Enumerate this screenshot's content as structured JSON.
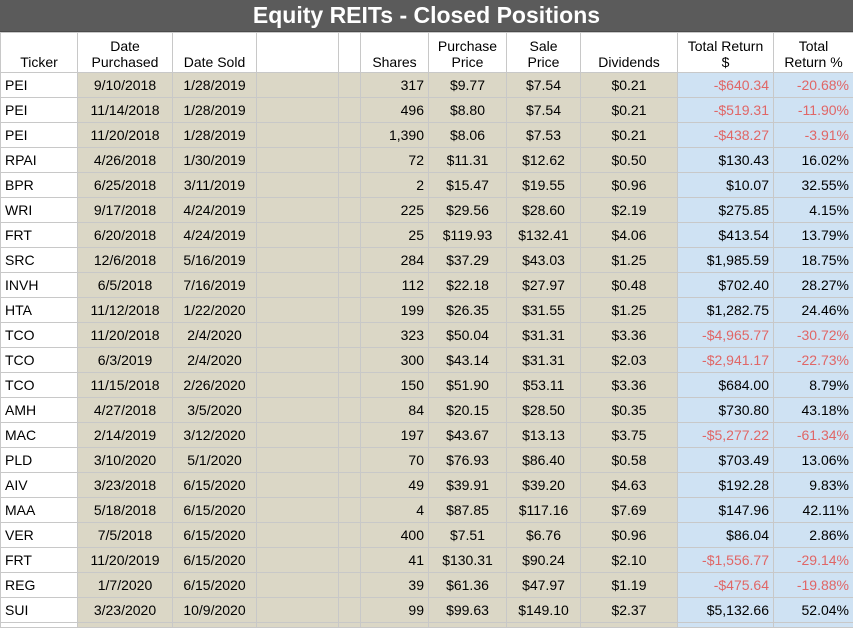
{
  "title": "Equity REITs - Closed Positions",
  "headers": {
    "ticker": "Ticker",
    "date_purchased": [
      "Date",
      "Purchased"
    ],
    "date_sold": "Date Sold",
    "blank1": "",
    "blank2": "",
    "shares": "Shares",
    "purchase_price": [
      "Purchase",
      "Price"
    ],
    "sale_price": [
      "Sale",
      "Price"
    ],
    "dividends": "Dividends",
    "total_return_dollar": [
      "Total Return",
      "$"
    ],
    "total_return_pct": [
      "Total",
      "Return %"
    ]
  },
  "rows": [
    {
      "ticker": "PEI",
      "purchased": "9/10/2018",
      "sold": "1/28/2019",
      "shares": "317",
      "purchase_price": "$9.77",
      "sale_price": "$7.54",
      "dividends": "$0.21",
      "total_return": "-$640.34",
      "total_pct": "-20.68%",
      "negative": true
    },
    {
      "ticker": "PEI",
      "purchased": "11/14/2018",
      "sold": "1/28/2019",
      "shares": "496",
      "purchase_price": "$8.80",
      "sale_price": "$7.54",
      "dividends": "$0.21",
      "total_return": "-$519.31",
      "total_pct": "-11.90%",
      "negative": true
    },
    {
      "ticker": "PEI",
      "purchased": "11/20/2018",
      "sold": "1/28/2019",
      "shares": "1,390",
      "purchase_price": "$8.06",
      "sale_price": "$7.53",
      "dividends": "$0.21",
      "total_return": "-$438.27",
      "total_pct": "-3.91%",
      "negative": true
    },
    {
      "ticker": "RPAI",
      "purchased": "4/26/2018",
      "sold": "1/30/2019",
      "shares": "72",
      "purchase_price": "$11.31",
      "sale_price": "$12.62",
      "dividends": "$0.50",
      "total_return": "$130.43",
      "total_pct": "16.02%",
      "negative": false
    },
    {
      "ticker": "BPR",
      "purchased": "6/25/2018",
      "sold": "3/11/2019",
      "shares": "2",
      "purchase_price": "$15.47",
      "sale_price": "$19.55",
      "dividends": "$0.96",
      "total_return": "$10.07",
      "total_pct": "32.55%",
      "negative": false
    },
    {
      "ticker": "WRI",
      "purchased": "9/17/2018",
      "sold": "4/24/2019",
      "shares": "225",
      "purchase_price": "$29.56",
      "sale_price": "$28.60",
      "dividends": "$2.19",
      "total_return": "$275.85",
      "total_pct": "4.15%",
      "negative": false
    },
    {
      "ticker": "FRT",
      "purchased": "6/20/2018",
      "sold": "4/24/2019",
      "shares": "25",
      "purchase_price": "$119.93",
      "sale_price": "$132.41",
      "dividends": "$4.06",
      "total_return": "$413.54",
      "total_pct": "13.79%",
      "negative": false
    },
    {
      "ticker": "SRC",
      "purchased": "12/6/2018",
      "sold": "5/16/2019",
      "shares": "284",
      "purchase_price": "$37.29",
      "sale_price": "$43.03",
      "dividends": "$1.25",
      "total_return": "$1,985.59",
      "total_pct": "18.75%",
      "negative": false
    },
    {
      "ticker": "INVH",
      "purchased": "6/5/2018",
      "sold": "7/16/2019",
      "shares": "112",
      "purchase_price": "$22.18",
      "sale_price": "$27.97",
      "dividends": "$0.48",
      "total_return": "$702.40",
      "total_pct": "28.27%",
      "negative": false
    },
    {
      "ticker": "HTA",
      "purchased": "11/12/2018",
      "sold": "1/22/2020",
      "shares": "199",
      "purchase_price": "$26.35",
      "sale_price": "$31.55",
      "dividends": "$1.25",
      "total_return": "$1,282.75",
      "total_pct": "24.46%",
      "negative": false
    },
    {
      "ticker": "TCO",
      "purchased": "11/20/2018",
      "sold": "2/4/2020",
      "shares": "323",
      "purchase_price": "$50.04",
      "sale_price": "$31.31",
      "dividends": "$3.36",
      "total_return": "-$4,965.77",
      "total_pct": "-30.72%",
      "negative": true
    },
    {
      "ticker": "TCO",
      "purchased": "6/3/2019",
      "sold": "2/4/2020",
      "shares": "300",
      "purchase_price": "$43.14",
      "sale_price": "$31.31",
      "dividends": "$2.03",
      "total_return": "-$2,941.17",
      "total_pct": "-22.73%",
      "negative": true
    },
    {
      "ticker": "TCO",
      "purchased": "11/15/2018",
      "sold": "2/26/2020",
      "shares": "150",
      "purchase_price": "$51.90",
      "sale_price": "$53.11",
      "dividends": "$3.36",
      "total_return": "$684.00",
      "total_pct": "8.79%",
      "negative": false
    },
    {
      "ticker": "AMH",
      "purchased": "4/27/2018",
      "sold": "3/5/2020",
      "shares": "84",
      "purchase_price": "$20.15",
      "sale_price": "$28.50",
      "dividends": "$0.35",
      "total_return": "$730.80",
      "total_pct": "43.18%",
      "negative": false
    },
    {
      "ticker": "MAC",
      "purchased": "2/14/2019",
      "sold": "3/12/2020",
      "shares": "197",
      "purchase_price": "$43.67",
      "sale_price": "$13.13",
      "dividends": "$3.75",
      "total_return": "-$5,277.22",
      "total_pct": "-61.34%",
      "negative": true
    },
    {
      "ticker": "PLD",
      "purchased": "3/10/2020",
      "sold": "5/1/2020",
      "shares": "70",
      "purchase_price": "$76.93",
      "sale_price": "$86.40",
      "dividends": "$0.58",
      "total_return": "$703.49",
      "total_pct": "13.06%",
      "negative": false
    },
    {
      "ticker": "AIV",
      "purchased": "3/23/2018",
      "sold": "6/15/2020",
      "shares": "49",
      "purchase_price": "$39.91",
      "sale_price": "$39.20",
      "dividends": "$4.63",
      "total_return": "$192.28",
      "total_pct": "9.83%",
      "negative": false
    },
    {
      "ticker": "MAA",
      "purchased": "5/18/2018",
      "sold": "6/15/2020",
      "shares": "4",
      "purchase_price": "$87.85",
      "sale_price": "$117.16",
      "dividends": "$7.69",
      "total_return": "$147.96",
      "total_pct": "42.11%",
      "negative": false
    },
    {
      "ticker": "VER",
      "purchased": "7/5/2018",
      "sold": "6/15/2020",
      "shares": "400",
      "purchase_price": "$7.51",
      "sale_price": "$6.76",
      "dividends": "$0.96",
      "total_return": "$86.04",
      "total_pct": "2.86%",
      "negative": false
    },
    {
      "ticker": "FRT",
      "purchased": "11/20/2019",
      "sold": "6/15/2020",
      "shares": "41",
      "purchase_price": "$130.31",
      "sale_price": "$90.24",
      "dividends": "$2.10",
      "total_return": "-$1,556.77",
      "total_pct": "-29.14%",
      "negative": true
    },
    {
      "ticker": "REG",
      "purchased": "1/7/2020",
      "sold": "6/15/2020",
      "shares": "39",
      "purchase_price": "$61.36",
      "sale_price": "$47.97",
      "dividends": "$1.19",
      "total_return": "-$475.64",
      "total_pct": "-19.88%",
      "negative": true
    },
    {
      "ticker": "SUI",
      "purchased": "3/23/2020",
      "sold": "10/9/2020",
      "shares": "99",
      "purchase_price": "$99.63",
      "sale_price": "$149.10",
      "dividends": "$2.37",
      "total_return": "$5,132.66",
      "total_pct": "52.04%",
      "negative": false
    }
  ],
  "colors": {
    "title_bg": "#5b5b5b",
    "tan_cell": "#dbd7c6",
    "blue_cell": "#cfe2f3",
    "negative_text": "#e06666"
  }
}
